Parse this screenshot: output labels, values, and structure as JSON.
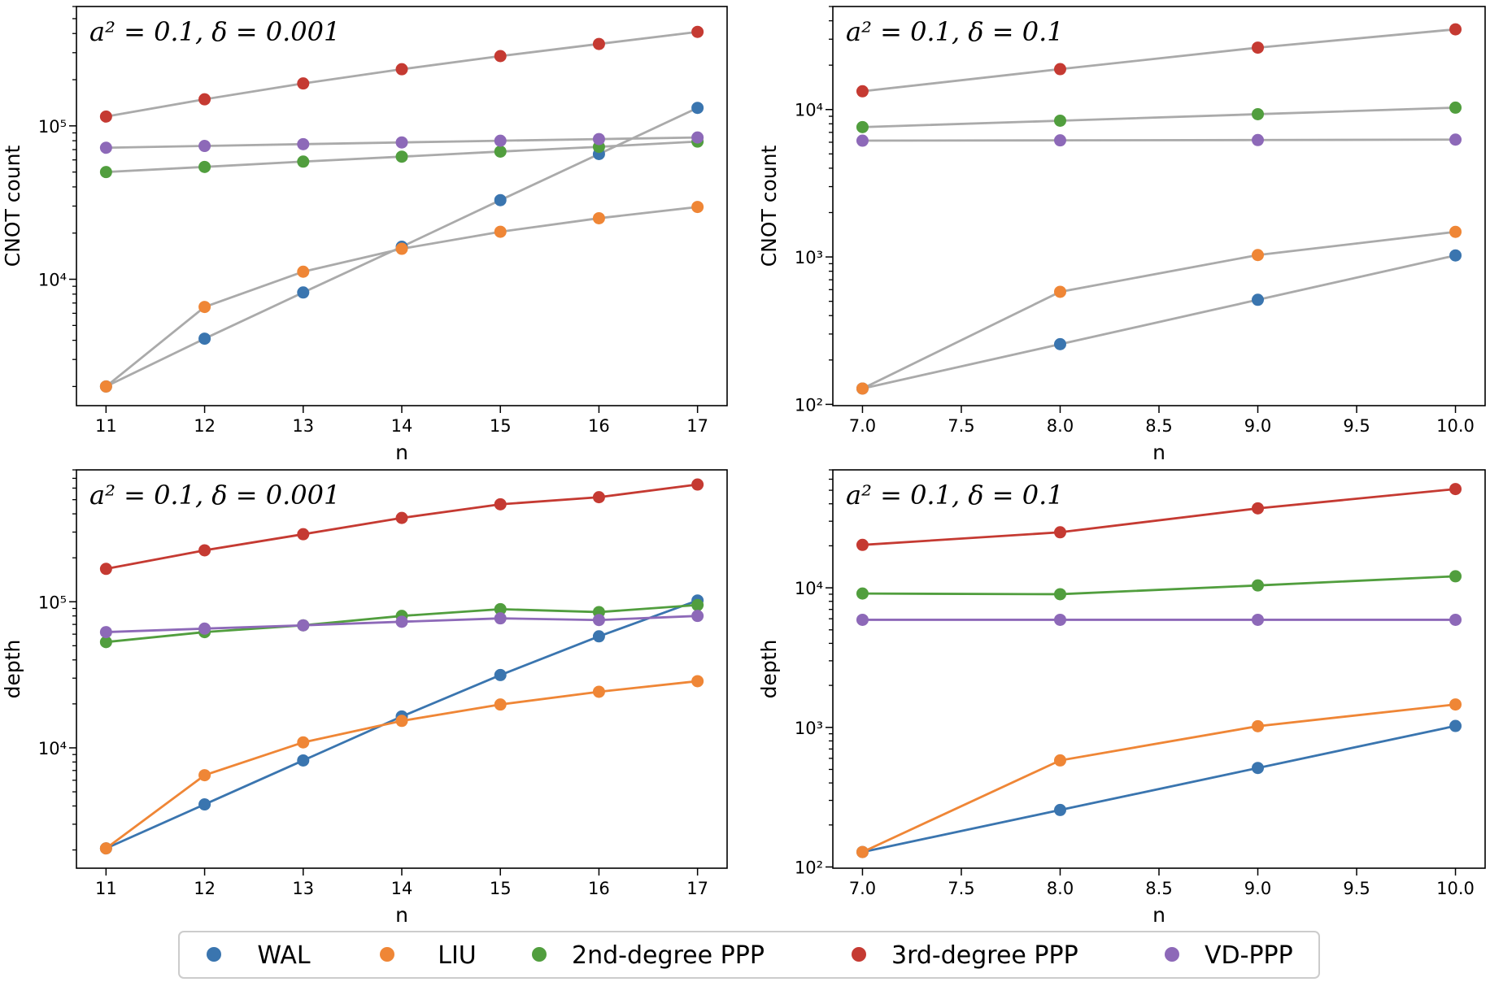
{
  "colors": {
    "WAL": "#3a75af",
    "LIU": "#ef8636",
    "2nd-degree PPP": "#519e3e",
    "3rd-degree PPP": "#c53a32",
    "VD-PPP": "#8d69b8",
    "gray_line": "#aaaaaa"
  },
  "legend": {
    "placement": "bottom-center",
    "entries": [
      "WAL",
      "LIU",
      "2nd-degree PPP",
      "3rd-degree PPP",
      "VD-PPP"
    ]
  },
  "chart_data": [
    {
      "type": "line",
      "title": "a² = 0.1, δ = 0.001",
      "xlabel": "n",
      "ylabel": "CNOT count",
      "yscale": "log",
      "line_style": "gray",
      "x": [
        11,
        12,
        13,
        14,
        15,
        16,
        17
      ],
      "xlim": [
        10.7,
        17.3
      ],
      "ylim": [
        1500,
        600000
      ],
      "xticks": [
        "11",
        "12",
        "13",
        "14",
        "15",
        "16",
        "17"
      ],
      "xtick_values": [
        11,
        12,
        13,
        14,
        15,
        16,
        17
      ],
      "yticks": [
        "10⁴",
        "10⁵"
      ],
      "ytick_values": [
        10000,
        100000
      ],
      "series": [
        {
          "name": "WAL",
          "values": [
            2000,
            4100,
            8200,
            16300,
            32800,
            65500,
            131000
          ]
        },
        {
          "name": "LIU",
          "values": [
            2000,
            6600,
            11200,
            15800,
            20400,
            25000,
            29600
          ]
        },
        {
          "name": "2nd-degree PPP",
          "values": [
            50000,
            54000,
            58500,
            63000,
            68000,
            73000,
            79000
          ]
        },
        {
          "name": "3rd-degree PPP",
          "values": [
            115000,
            149000,
            189000,
            234000,
            285000,
            342000,
            410000
          ]
        },
        {
          "name": "VD-PPP",
          "values": [
            72000,
            74000,
            76000,
            78000,
            80000,
            82000,
            84000
          ]
        }
      ]
    },
    {
      "type": "line",
      "title": "a² = 0.1, δ = 0.1",
      "xlabel": "n",
      "ylabel": "CNOT count",
      "yscale": "log",
      "line_style": "gray",
      "x": [
        7,
        8,
        9,
        10
      ],
      "xlim": [
        6.85,
        10.15
      ],
      "ylim": [
        98,
        50000
      ],
      "xticks": [
        "7.0",
        "7.5",
        "8.0",
        "8.5",
        "9.0",
        "9.5",
        "10.0"
      ],
      "xtick_values": [
        7,
        7.5,
        8,
        8.5,
        9,
        9.5,
        10
      ],
      "yticks": [
        "10²",
        "10³",
        "10⁴"
      ],
      "ytick_values": [
        100,
        1000,
        10000
      ],
      "series": [
        {
          "name": "WAL",
          "values": [
            128,
            256,
            512,
            1024
          ]
        },
        {
          "name": "LIU",
          "values": [
            128,
            580,
            1030,
            1480
          ]
        },
        {
          "name": "2nd-degree PPP",
          "values": [
            7600,
            8400,
            9300,
            10300
          ]
        },
        {
          "name": "3rd-degree PPP",
          "values": [
            13300,
            18800,
            26300,
            35000
          ]
        },
        {
          "name": "VD-PPP",
          "values": [
            6150,
            6180,
            6210,
            6250
          ]
        }
      ]
    },
    {
      "type": "line",
      "title": "a² = 0.1, δ = 0.001",
      "xlabel": "n",
      "ylabel": "depth",
      "yscale": "log",
      "line_style": "colored",
      "x": [
        11,
        12,
        13,
        14,
        15,
        16,
        17
      ],
      "xlim": [
        10.7,
        17.3
      ],
      "ylim": [
        1500,
        800000
      ],
      "xticks": [
        "11",
        "12",
        "13",
        "14",
        "15",
        "16",
        "17"
      ],
      "xtick_values": [
        11,
        12,
        13,
        14,
        15,
        16,
        17
      ],
      "yticks": [
        "10⁴",
        "10⁵"
      ],
      "ytick_values": [
        10000,
        100000
      ],
      "series": [
        {
          "name": "WAL",
          "values": [
            2050,
            4100,
            8200,
            16400,
            31500,
            58000,
            102000
          ]
        },
        {
          "name": "LIU",
          "values": [
            2050,
            6500,
            10900,
            15300,
            19800,
            24200,
            28600
          ]
        },
        {
          "name": "2nd-degree PPP",
          "values": [
            53000,
            62000,
            69000,
            80000,
            89000,
            85000,
            95000
          ]
        },
        {
          "name": "3rd-degree PPP",
          "values": [
            168000,
            225000,
            290000,
            375000,
            465000,
            520000,
            635000
          ]
        },
        {
          "name": "VD-PPP",
          "values": [
            62000,
            65500,
            69000,
            73000,
            77000,
            75000,
            80000
          ]
        }
      ]
    },
    {
      "type": "line",
      "title": "a² = 0.1, δ = 0.1",
      "xlabel": "n",
      "ylabel": "depth",
      "yscale": "log",
      "line_style": "colored",
      "x": [
        7,
        8,
        9,
        10
      ],
      "xlim": [
        6.85,
        10.15
      ],
      "ylim": [
        98,
        70000
      ],
      "xticks": [
        "7.0",
        "7.5",
        "8.0",
        "8.5",
        "9.0",
        "9.5",
        "10.0"
      ],
      "xtick_values": [
        7,
        7.5,
        8,
        8.5,
        9,
        9.5,
        10
      ],
      "yticks": [
        "10²",
        "10³",
        "10⁴"
      ],
      "ytick_values": [
        100,
        1000,
        10000
      ],
      "series": [
        {
          "name": "WAL",
          "values": [
            128,
            256,
            512,
            1024
          ]
        },
        {
          "name": "LIU",
          "values": [
            128,
            580,
            1020,
            1460
          ]
        },
        {
          "name": "2nd-degree PPP",
          "values": [
            9100,
            9000,
            10400,
            12100
          ]
        },
        {
          "name": "3rd-degree PPP",
          "values": [
            20300,
            25000,
            37100,
            51000
          ]
        },
        {
          "name": "VD-PPP",
          "values": [
            5900,
            5900,
            5900,
            5900
          ]
        }
      ]
    }
  ]
}
